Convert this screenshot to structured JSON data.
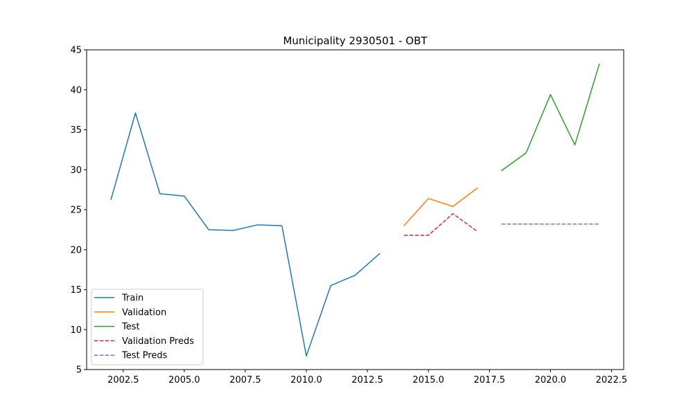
{
  "chart_data": {
    "type": "line",
    "title": "Municipality 2930501 - OBT",
    "xlabel": "",
    "ylabel": "",
    "xlim": [
      2001.0,
      2023.0
    ],
    "ylim": [
      5,
      45
    ],
    "x_ticks": [
      2002.5,
      2005.0,
      2007.5,
      2010.0,
      2012.5,
      2015.0,
      2017.5,
      2020.0,
      2022.5
    ],
    "x_tick_labels": [
      "2002.5",
      "2005.0",
      "2007.5",
      "2010.0",
      "2012.5",
      "2015.0",
      "2017.5",
      "2020.0",
      "2022.5"
    ],
    "y_ticks": [
      5,
      10,
      15,
      20,
      25,
      30,
      35,
      40,
      45
    ],
    "y_tick_labels": [
      "5",
      "10",
      "15",
      "20",
      "25",
      "30",
      "35",
      "40",
      "45"
    ],
    "grid": false,
    "legend_position": "lower-left",
    "series": [
      {
        "name": "Train",
        "color": "#1f77b4",
        "style": "solid",
        "x": [
          2002,
          2003,
          2004,
          2005,
          2006,
          2007,
          2008,
          2009,
          2010,
          2011,
          2012,
          2013
        ],
        "y": [
          26.3,
          37.1,
          27.0,
          26.7,
          22.5,
          22.4,
          23.1,
          23.0,
          6.7,
          15.5,
          16.8,
          19.5
        ]
      },
      {
        "name": "Validation",
        "color": "#ff7f0e",
        "style": "solid",
        "x": [
          2014,
          2015,
          2016,
          2017
        ],
        "y": [
          23.0,
          26.4,
          25.4,
          27.7
        ]
      },
      {
        "name": "Test",
        "color": "#2ca02c",
        "style": "solid",
        "x": [
          2018,
          2019,
          2020,
          2021,
          2022
        ],
        "y": [
          29.9,
          32.1,
          39.4,
          33.1,
          43.2
        ]
      },
      {
        "name": "Validation Preds",
        "color": "#d62728",
        "style": "dashed",
        "x": [
          2014,
          2015,
          2016,
          2017
        ],
        "y": [
          21.8,
          21.8,
          24.5,
          22.3
        ]
      },
      {
        "name": "Test Preds",
        "color": "#9467bd",
        "style": "dashed",
        "x": [
          2018,
          2019,
          2020,
          2021,
          2022
        ],
        "y": [
          23.2,
          23.2,
          23.2,
          23.2,
          23.2
        ]
      }
    ]
  }
}
